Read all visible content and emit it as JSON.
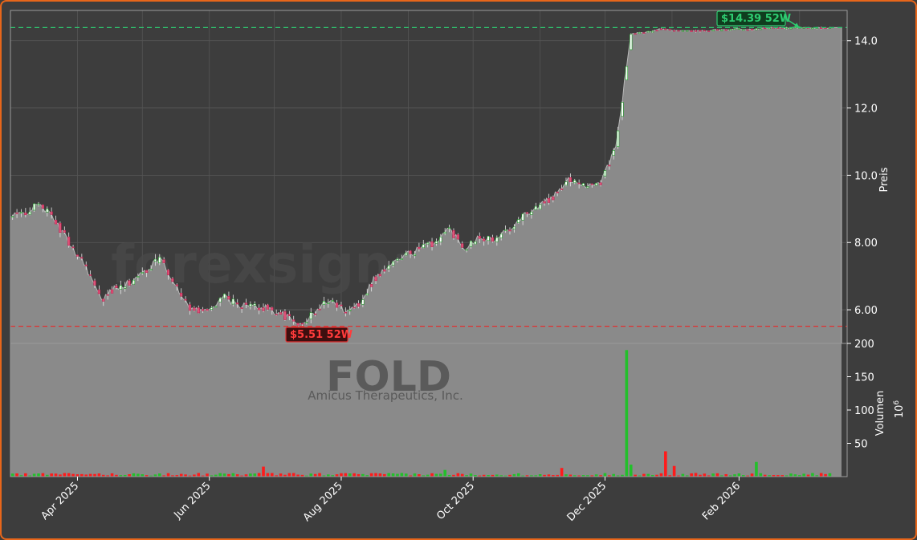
{
  "watermark": {
    "site": "forexsignale.trade",
    "ticker": "FOLD",
    "company": "Amicus Therapeutics, Inc."
  },
  "colors": {
    "up": "#22c02a",
    "down": "#ff1a1a",
    "area": "#8a8a8a",
    "bg": "#3d3d3d",
    "high": "#2ecc71",
    "low": "#e03030",
    "frame": "#e8661a"
  },
  "chart_data": {
    "type": "line",
    "subtype": "area-candlestick-volume",
    "price_axis": {
      "label": "Preis",
      "ylim": [
        5.0,
        14.9
      ],
      "ticks": [
        "6.00",
        "8.00",
        "10.0",
        "12.0",
        "14.0"
      ],
      "position": "right"
    },
    "volume_axis": {
      "label": "Volumen",
      "unit": "10^6",
      "ylim": [
        0,
        200
      ],
      "ticks": [
        "50",
        "100",
        "150",
        "200"
      ],
      "position": "right"
    },
    "x_axis": {
      "range": [
        "2025-03-01",
        "2026-03-23"
      ],
      "ticks": [
        "Apr 2025",
        "Jun 2025",
        "Aug 2025",
        "Oct 2025",
        "Dec 2025",
        "Feb 2026"
      ]
    },
    "annotations": [
      {
        "type": "high",
        "label": "$14.39 52W",
        "value": 14.39
      },
      {
        "type": "low",
        "label": "$5.51 52W",
        "value": 5.51
      }
    ],
    "price_path": [
      [
        "2025-03-01",
        8.75
      ],
      [
        "2025-03-08",
        8.9
      ],
      [
        "2025-03-15",
        9.15
      ],
      [
        "2025-03-22",
        8.6
      ],
      [
        "2025-03-29",
        7.9
      ],
      [
        "2025-04-05",
        7.3
      ],
      [
        "2025-04-12",
        6.25
      ],
      [
        "2025-04-19",
        6.7
      ],
      [
        "2025-04-26",
        6.8
      ],
      [
        "2025-05-03",
        7.2
      ],
      [
        "2025-05-10",
        7.55
      ],
      [
        "2025-05-17",
        6.6
      ],
      [
        "2025-05-24",
        6.0
      ],
      [
        "2025-05-31",
        5.95
      ],
      [
        "2025-06-07",
        6.4
      ],
      [
        "2025-06-14",
        6.15
      ],
      [
        "2025-06-21",
        6.1
      ],
      [
        "2025-06-28",
        6.05
      ],
      [
        "2025-07-05",
        5.85
      ],
      [
        "2025-07-12",
        5.55
      ],
      [
        "2025-07-19",
        5.85
      ],
      [
        "2025-07-26",
        6.3
      ],
      [
        "2025-08-02",
        6.0
      ],
      [
        "2025-08-09",
        6.15
      ],
      [
        "2025-08-16",
        6.9
      ],
      [
        "2025-08-23",
        7.3
      ],
      [
        "2025-08-30",
        7.6
      ],
      [
        "2025-09-06",
        7.8
      ],
      [
        "2025-09-13",
        8.0
      ],
      [
        "2025-09-20",
        8.4
      ],
      [
        "2025-09-27",
        7.85
      ],
      [
        "2025-10-04",
        8.2
      ],
      [
        "2025-10-11",
        8.05
      ],
      [
        "2025-10-18",
        8.45
      ],
      [
        "2025-10-25",
        8.85
      ],
      [
        "2025-11-01",
        9.1
      ],
      [
        "2025-11-08",
        9.4
      ],
      [
        "2025-11-15",
        9.9
      ],
      [
        "2025-11-22",
        9.7
      ],
      [
        "2025-11-29",
        9.8
      ],
      [
        "2025-12-06",
        10.8
      ],
      [
        "2025-12-13",
        14.2
      ],
      [
        "2025-12-20",
        14.25
      ],
      [
        "2025-12-27",
        14.35
      ],
      [
        "2026-01-03",
        14.3
      ],
      [
        "2026-01-10",
        14.28
      ],
      [
        "2026-01-17",
        14.3
      ],
      [
        "2026-01-24",
        14.33
      ],
      [
        "2026-01-31",
        14.35
      ],
      [
        "2026-02-07",
        14.33
      ],
      [
        "2026-02-14",
        14.38
      ],
      [
        "2026-02-21",
        14.38
      ],
      [
        "2026-03-01",
        14.39
      ],
      [
        "2026-03-08",
        14.38
      ],
      [
        "2026-03-15",
        14.38
      ]
    ],
    "volume_spikes_millions": [
      [
        "2025-06-25",
        15
      ],
      [
        "2025-09-17",
        10
      ],
      [
        "2025-11-10",
        13
      ],
      [
        "2025-12-10",
        190
      ],
      [
        "2025-12-12",
        30
      ],
      [
        "2025-12-13",
        18
      ],
      [
        "2025-12-28",
        38
      ],
      [
        "2026-01-02",
        16
      ],
      [
        "2026-02-09",
        22
      ]
    ]
  }
}
